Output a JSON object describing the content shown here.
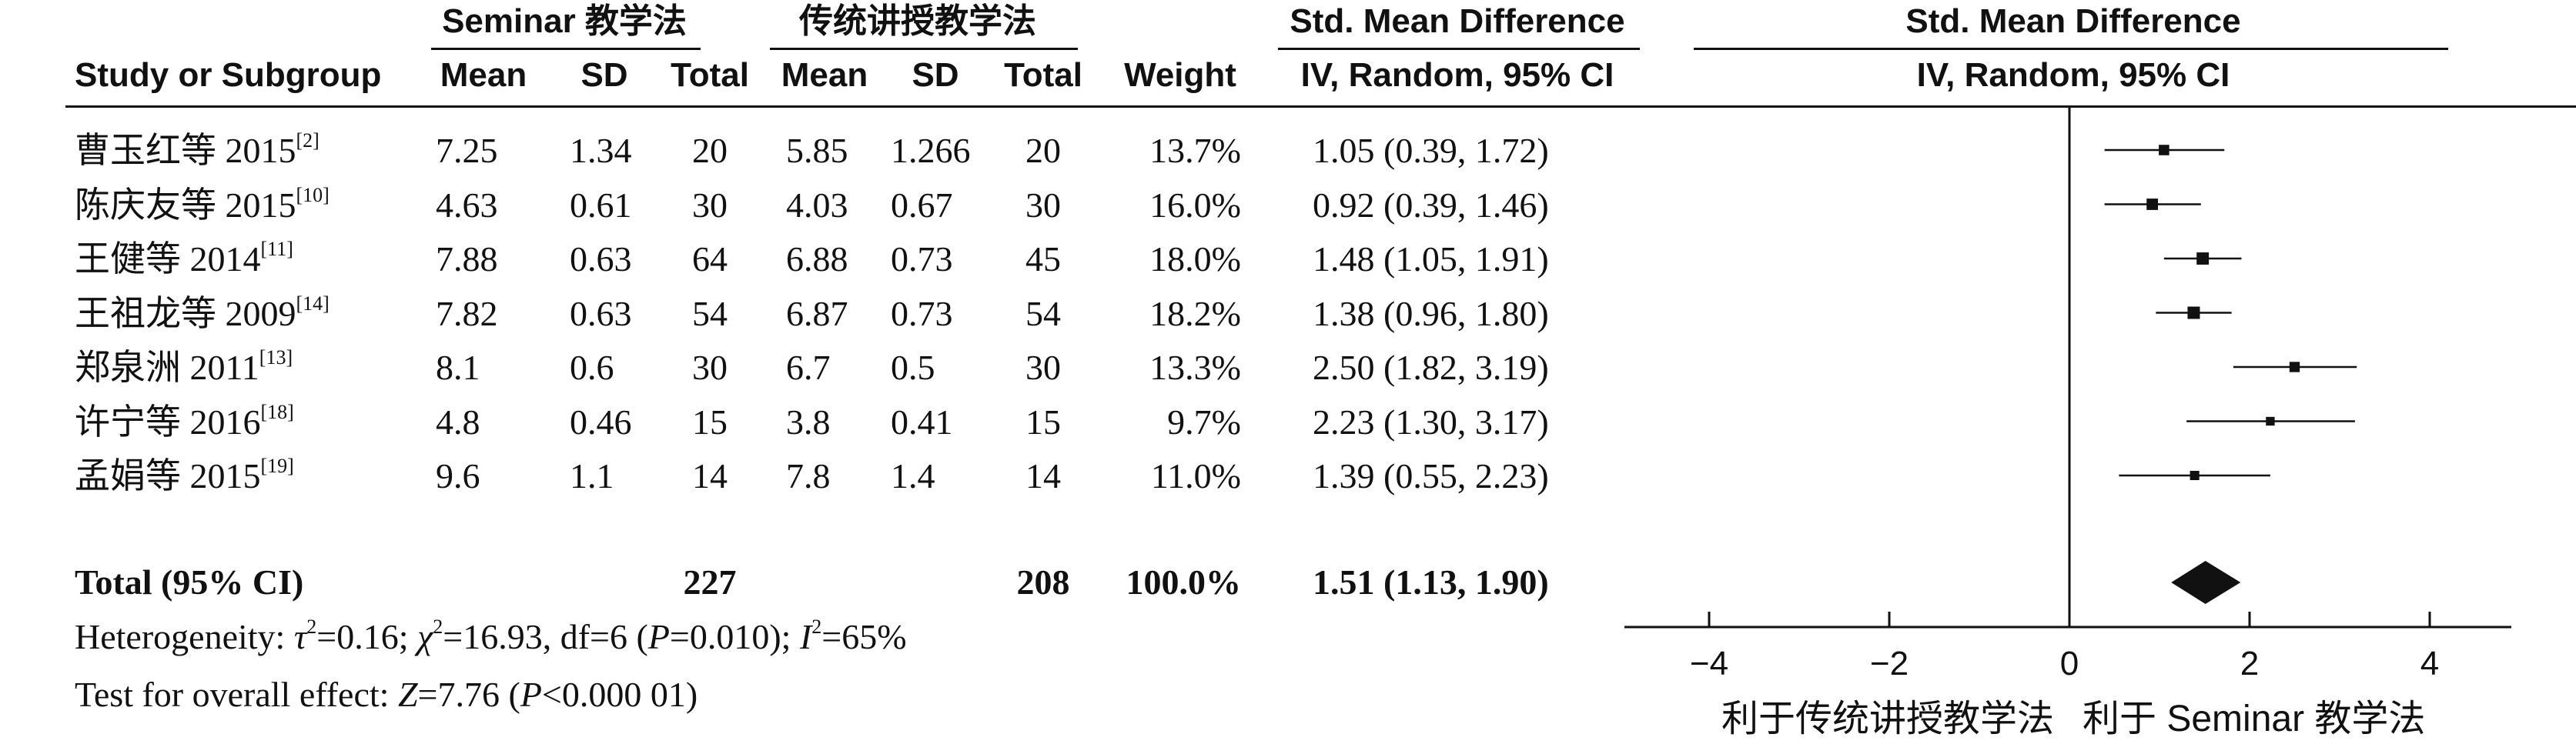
{
  "header": {
    "group1_name": "Seminar 教学法",
    "group2_name": "传统讲授教学法",
    "effect_title_line1": "Std. Mean Difference",
    "effect_title_line2": "IV, Random, 95% CI",
    "plot_title_line1": "Std. Mean Difference",
    "plot_title_line2": "IV, Random, 95% CI",
    "columns": [
      "Study or Subgroup",
      "Mean",
      "SD",
      "Total",
      "Mean",
      "SD",
      "Total",
      "Weight"
    ]
  },
  "rows": [
    {
      "study": "曹玉红等 2015",
      "ref": "[2]",
      "mean1": "7.25",
      "sd1": "1.34",
      "n1": "20",
      "mean2": "5.85",
      "sd2": "1.266",
      "n2": "20",
      "weight": "13.7%",
      "ci_text": "1.05 (0.39, 1.72)"
    },
    {
      "study": "陈庆友等 2015",
      "ref": "[10]",
      "mean1": "4.63",
      "sd1": "0.61",
      "n1": "30",
      "mean2": "4.03",
      "sd2": "0.67",
      "n2": "30",
      "weight": "16.0%",
      "ci_text": "0.92 (0.39, 1.46)"
    },
    {
      "study": "王健等 2014",
      "ref": "[11]",
      "mean1": "7.88",
      "sd1": "0.63",
      "n1": "64",
      "mean2": "6.88",
      "sd2": "0.73",
      "n2": "45",
      "weight": "18.0%",
      "ci_text": "1.48 (1.05, 1.91)"
    },
    {
      "study": "王祖龙等 2009",
      "ref": "[14]",
      "mean1": "7.82",
      "sd1": "0.63",
      "n1": "54",
      "mean2": "6.87",
      "sd2": "0.73",
      "n2": "54",
      "weight": "18.2%",
      "ci_text": "1.38 (0.96, 1.80)"
    },
    {
      "study": "郑泉洲 2011",
      "ref": "[13]",
      "mean1": "8.1",
      "sd1": "0.6",
      "n1": "30",
      "mean2": "6.7",
      "sd2": "0.5",
      "n2": "30",
      "weight": "13.3%",
      "ci_text": "2.50 (1.82, 3.19)"
    },
    {
      "study": "许宁等 2016",
      "ref": "[18]",
      "mean1": "4.8",
      "sd1": "0.46",
      "n1": "15",
      "mean2": "3.8",
      "sd2": "0.41",
      "n2": "15",
      "weight": "9.7%",
      "ci_text": "2.23 (1.30, 3.17)"
    },
    {
      "study": "孟娟等 2015",
      "ref": "[19]",
      "mean1": "9.6",
      "sd1": "1.1",
      "n1": "14",
      "mean2": "7.8",
      "sd2": "1.4",
      "n2": "14",
      "weight": "11.0%",
      "ci_text": "1.39 (0.55, 2.23)"
    }
  ],
  "total": {
    "label": "Total (95% CI)",
    "n1": "227",
    "n2": "208",
    "weight": "100.0%",
    "ci_text": "1.51 (1.13, 1.90)"
  },
  "heterogeneity": {
    "prefix": "Heterogeneity: ",
    "tau": "τ",
    "tau_val": "=0.16; ",
    "chi": "χ",
    "chi_val": "=16.93, df=6 (",
    "p": "P",
    "p_val": "=0.010); ",
    "i": "I",
    "i_val": "=65%",
    "sup": "2"
  },
  "overall": {
    "prefix": "Test for overall effect: ",
    "z": "Z",
    "z_val": "=7.76 (",
    "p": "P",
    "p_val": "<0.000 01)"
  },
  "footer": {
    "left_label": "利于传统讲授教学法",
    "right_label": "利于 Seminar 教学法"
  },
  "chart_data": {
    "type": "forest",
    "title": "Std. Mean Difference IV, Random, 95% CI",
    "xlim": [
      -5,
      5
    ],
    "ticks": [
      -4,
      -2,
      0,
      2,
      4
    ],
    "tick_labels": [
      "−4",
      "−2",
      "0",
      "2",
      "4"
    ],
    "series": [
      {
        "study": "曹玉红等 2015",
        "estimate": 1.05,
        "lower": 0.39,
        "upper": 1.72,
        "weight": 13.7
      },
      {
        "study": "陈庆友等 2015",
        "estimate": 0.92,
        "lower": 0.39,
        "upper": 1.46,
        "weight": 16.0
      },
      {
        "study": "王健等 2014",
        "estimate": 1.48,
        "lower": 1.05,
        "upper": 1.91,
        "weight": 18.0
      },
      {
        "study": "王祖龙等 2009",
        "estimate": 1.38,
        "lower": 0.96,
        "upper": 1.8,
        "weight": 18.2
      },
      {
        "study": "郑泉洲 2011",
        "estimate": 2.5,
        "lower": 1.82,
        "upper": 3.19,
        "weight": 13.3
      },
      {
        "study": "许宁等 2016",
        "estimate": 2.23,
        "lower": 1.3,
        "upper": 3.17,
        "weight": 9.7
      },
      {
        "study": "孟娟等 2015",
        "estimate": 1.39,
        "lower": 0.55,
        "upper": 2.23,
        "weight": 11.0
      }
    ],
    "pooled": {
      "estimate": 1.51,
      "lower": 1.13,
      "upper": 1.9
    },
    "reference_line": 0,
    "color": "#111111"
  }
}
